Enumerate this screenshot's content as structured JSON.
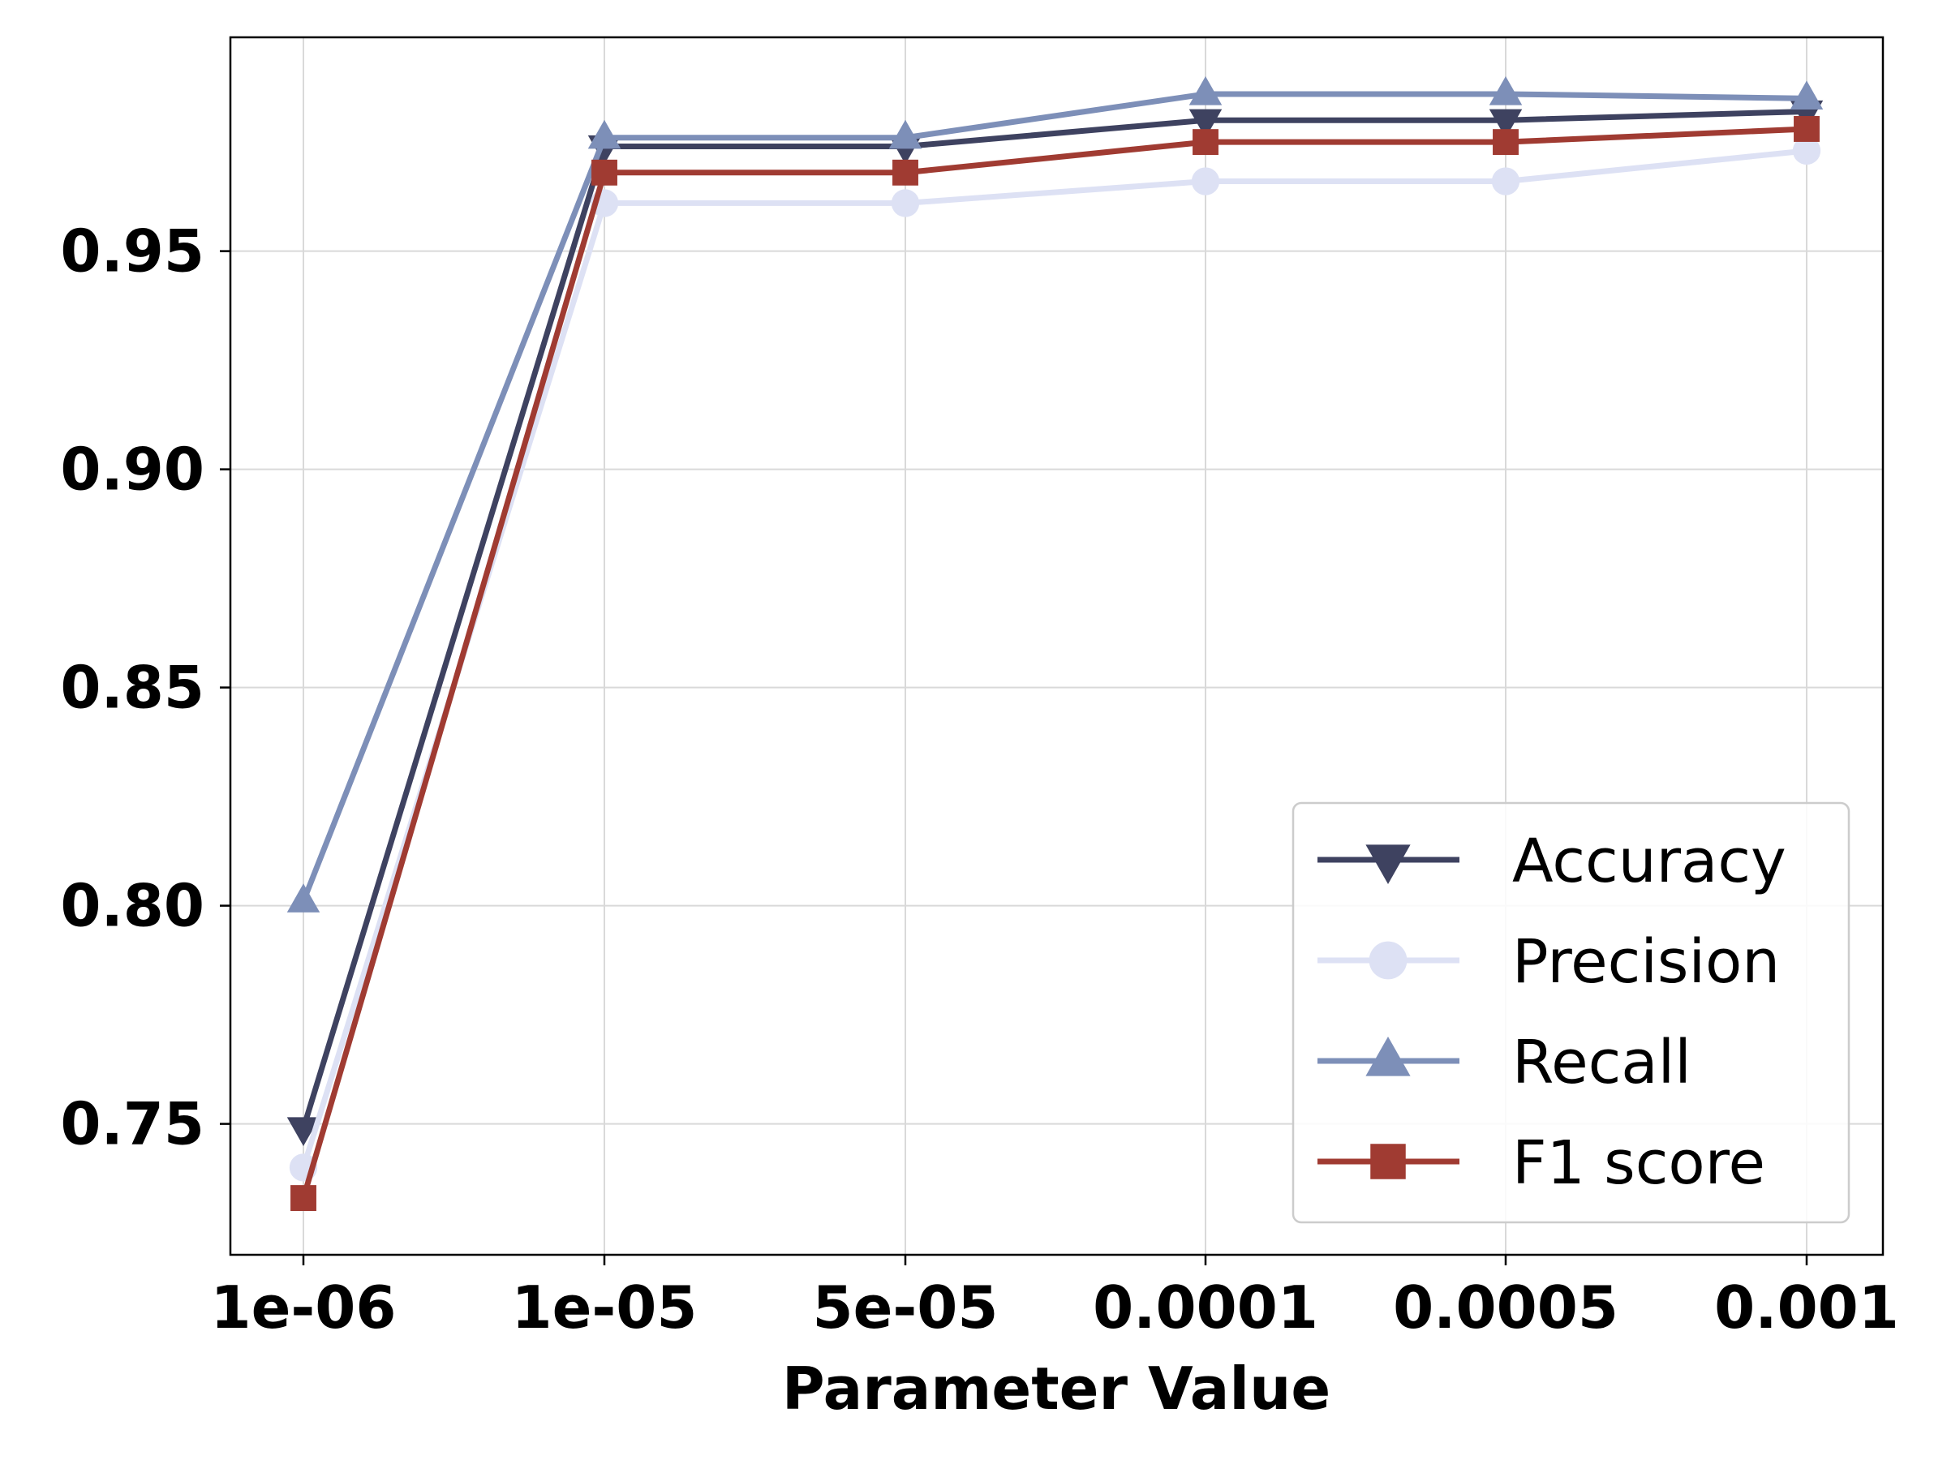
{
  "chart_data": {
    "type": "line",
    "title": "",
    "xlabel": "Parameter Value",
    "ylabel": "",
    "categories": [
      "1e-06",
      "1e-05",
      "5e-05",
      "0.0001",
      "0.0005",
      "0.001"
    ],
    "ylim": [
      0.72,
      0.999
    ],
    "yticks": [
      "0.75",
      "0.80",
      "0.85",
      "0.90",
      "0.95"
    ],
    "ytick_values": [
      0.75,
      0.8,
      0.85,
      0.9,
      0.95
    ],
    "grid": true,
    "legend_position": "lower-right",
    "series": [
      {
        "name": "Accuracy",
        "color": "#3e4260",
        "marker": "triangle-down",
        "values": [
          0.749,
          0.974,
          0.974,
          0.98,
          0.98,
          0.982
        ]
      },
      {
        "name": "Precision",
        "color": "#dde1f4",
        "marker": "circle",
        "values": [
          0.74,
          0.961,
          0.961,
          0.966,
          0.966,
          0.973
        ]
      },
      {
        "name": "Recall",
        "color": "#7d8fb8",
        "marker": "triangle-up",
        "values": [
          0.801,
          0.976,
          0.976,
          0.986,
          0.986,
          0.985
        ]
      },
      {
        "name": "F1 score",
        "color": "#a03b32",
        "marker": "square",
        "values": [
          0.733,
          0.968,
          0.968,
          0.975,
          0.975,
          0.978
        ]
      }
    ]
  }
}
